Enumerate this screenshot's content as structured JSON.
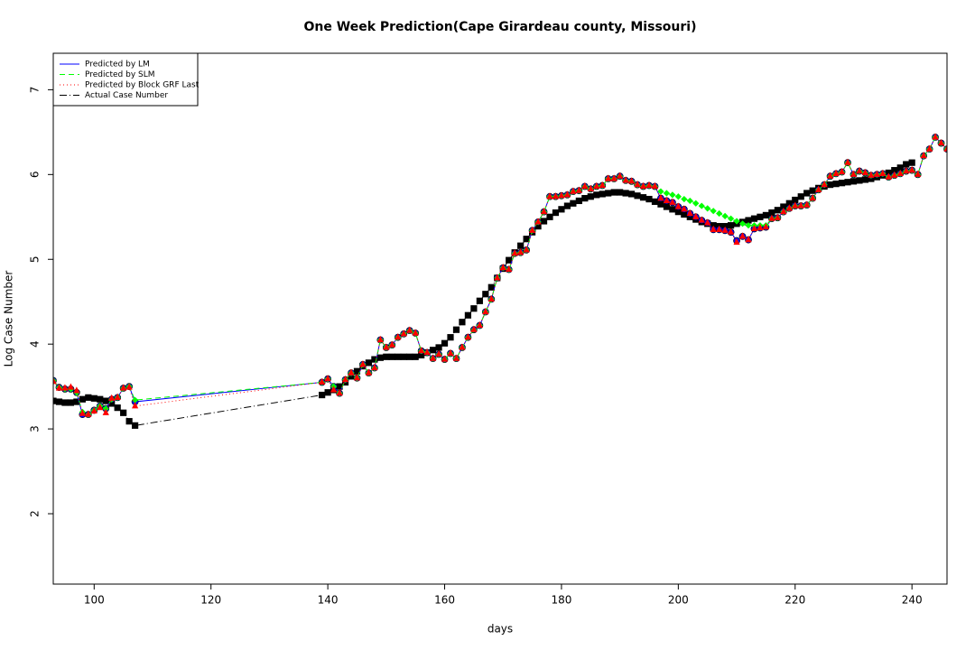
{
  "chart_data": {
    "type": "line",
    "title": "One Week Prediction(Cape Girardeau county, Missouri)",
    "xlabel": "days",
    "ylabel": "Log Case Number",
    "xlim": [
      93,
      246
    ],
    "ylim": [
      1.17,
      7.43
    ],
    "xticks": [
      100,
      120,
      140,
      160,
      180,
      200,
      220,
      240
    ],
    "yticks": [
      2,
      3,
      4,
      5,
      6,
      7
    ],
    "legend": "topleft",
    "x": [
      93,
      94,
      95,
      96,
      97,
      98,
      99,
      100,
      101,
      102,
      103,
      104,
      105,
      106,
      107,
      139,
      140,
      141,
      142,
      143,
      144,
      145,
      146,
      147,
      148,
      149,
      150,
      151,
      152,
      153,
      154,
      155,
      156,
      157,
      158,
      159,
      160,
      161,
      162,
      163,
      164,
      165,
      166,
      167,
      168,
      169,
      170,
      171,
      172,
      173,
      174,
      175,
      176,
      177,
      178,
      179,
      180,
      181,
      182,
      183,
      184,
      185,
      186,
      187,
      188,
      189,
      190,
      191,
      192,
      193,
      194,
      195,
      196,
      197,
      198,
      199,
      200,
      201,
      202,
      203,
      204,
      205,
      206,
      207,
      208,
      209,
      210,
      211,
      212,
      213,
      214,
      215,
      216,
      217,
      218,
      219,
      220,
      221,
      222,
      223,
      224,
      225,
      226,
      227,
      228,
      229,
      230,
      231,
      232,
      233,
      234,
      235,
      236,
      237,
      238,
      239,
      240,
      241,
      242,
      243,
      244,
      245,
      246
    ],
    "series": [
      {
        "name": "Actual Case Number",
        "color": "#000000",
        "linestyle": "dashdot",
        "marker": "square",
        "values": [
          3.33,
          3.32,
          3.31,
          3.31,
          3.32,
          3.35,
          3.37,
          3.36,
          3.35,
          3.33,
          3.3,
          3.25,
          3.19,
          3.09,
          3.04,
          3.4,
          3.43,
          3.46,
          3.5,
          3.55,
          3.62,
          3.68,
          3.74,
          3.78,
          3.82,
          3.84,
          3.85,
          3.85,
          3.85,
          3.85,
          3.85,
          3.85,
          3.87,
          3.9,
          3.93,
          3.96,
          4.01,
          4.08,
          4.17,
          4.26,
          4.34,
          4.42,
          4.51,
          4.59,
          4.67,
          4.78,
          4.89,
          4.99,
          5.08,
          5.16,
          5.24,
          5.32,
          5.39,
          5.45,
          5.5,
          5.55,
          5.59,
          5.63,
          5.66,
          5.69,
          5.72,
          5.74,
          5.76,
          5.77,
          5.78,
          5.79,
          5.79,
          5.78,
          5.77,
          5.75,
          5.73,
          5.71,
          5.68,
          5.65,
          5.62,
          5.59,
          5.56,
          5.53,
          5.5,
          5.47,
          5.44,
          5.42,
          5.4,
          5.39,
          5.39,
          5.4,
          5.42,
          5.44,
          5.46,
          5.48,
          5.5,
          5.52,
          5.55,
          5.58,
          5.62,
          5.66,
          5.7,
          5.74,
          5.78,
          5.81,
          5.84,
          5.86,
          5.88,
          5.89,
          5.9,
          5.91,
          5.92,
          5.93,
          5.94,
          5.95,
          5.97,
          5.99,
          6.02,
          6.05,
          6.08,
          6.12,
          6.14,
          null,
          null,
          null,
          null,
          null,
          null
        ]
      },
      {
        "name": "Predicted by LM",
        "color": "#0000ff",
        "linestyle": "solid",
        "marker": "circle",
        "values": [
          3.57,
          3.49,
          3.47,
          3.47,
          3.43,
          3.17,
          3.17,
          3.22,
          3.27,
          3.24,
          3.35,
          3.37,
          3.48,
          3.5,
          3.32,
          3.55,
          3.59,
          3.5,
          3.42,
          3.58,
          3.66,
          3.6,
          3.76,
          3.66,
          3.72,
          4.05,
          3.96,
          3.99,
          4.08,
          4.12,
          4.16,
          4.13,
          3.92,
          3.9,
          3.83,
          3.88,
          3.82,
          3.89,
          3.83,
          3.96,
          4.08,
          4.17,
          4.22,
          4.38,
          4.53,
          4.78,
          4.9,
          4.88,
          5.07,
          5.08,
          5.11,
          5.34,
          5.44,
          5.56,
          5.74,
          5.74,
          5.75,
          5.76,
          5.8,
          5.81,
          5.86,
          5.83,
          5.86,
          5.87,
          5.95,
          5.95,
          5.98,
          5.93,
          5.92,
          5.88,
          5.86,
          5.87,
          5.86,
          5.72,
          5.69,
          5.67,
          5.62,
          5.59,
          5.54,
          5.5,
          5.46,
          5.43,
          5.35,
          5.35,
          5.34,
          5.32,
          5.22,
          5.27,
          5.23,
          5.36,
          5.37,
          5.38,
          5.48,
          5.49,
          5.56,
          5.6,
          5.63,
          5.63,
          5.64,
          5.72,
          5.82,
          5.88,
          5.98,
          6.01,
          6.03,
          6.14,
          6.0,
          6.04,
          6.02,
          5.99,
          6.0,
          6.01,
          5.97,
          5.99,
          6.01,
          6.04,
          6.05,
          6.0,
          6.22,
          6.3,
          6.44,
          6.37,
          6.3
        ]
      },
      {
        "name": "Predicted by SLM",
        "color": "#00ff00",
        "linestyle": "dashed",
        "marker": "diamond",
        "values": [
          3.57,
          3.49,
          3.47,
          3.47,
          3.43,
          3.2,
          3.17,
          3.22,
          3.27,
          3.24,
          3.35,
          3.37,
          3.48,
          3.5,
          3.34,
          3.55,
          3.59,
          3.5,
          3.42,
          3.58,
          3.66,
          3.6,
          3.76,
          3.66,
          3.72,
          4.05,
          3.96,
          3.99,
          4.08,
          4.12,
          4.16,
          4.13,
          3.92,
          3.9,
          3.83,
          3.88,
          3.82,
          3.89,
          3.83,
          3.96,
          4.08,
          4.17,
          4.22,
          4.38,
          4.53,
          4.78,
          4.9,
          4.88,
          5.07,
          5.08,
          5.11,
          5.34,
          5.44,
          5.56,
          5.74,
          5.74,
          5.75,
          5.76,
          5.8,
          5.81,
          5.86,
          5.83,
          5.86,
          5.87,
          5.95,
          5.95,
          5.98,
          5.93,
          5.92,
          5.88,
          5.86,
          5.87,
          5.86,
          5.8,
          5.78,
          5.76,
          5.74,
          5.71,
          5.69,
          5.66,
          5.63,
          5.6,
          5.57,
          5.54,
          5.51,
          5.48,
          5.45,
          5.42,
          5.4,
          5.4,
          5.4,
          5.4,
          5.48,
          5.49,
          5.56,
          5.6,
          5.63,
          5.63,
          5.64,
          5.72,
          5.82,
          5.88,
          5.98,
          6.01,
          6.03,
          6.14,
          6.0,
          6.04,
          6.02,
          5.99,
          6.0,
          6.01,
          5.97,
          5.99,
          6.01,
          6.04,
          6.05,
          6.0,
          6.22,
          6.3,
          6.44,
          6.37,
          6.3
        ]
      },
      {
        "name": "Predicted by Block GRF Last",
        "color": "#ff0000",
        "linestyle": "dotted",
        "marker": "triangle",
        "values": [
          3.56,
          3.48,
          3.48,
          3.49,
          3.45,
          3.18,
          3.17,
          3.21,
          3.25,
          3.19,
          3.36,
          3.37,
          3.48,
          3.49,
          3.27,
          3.55,
          3.59,
          3.46,
          3.42,
          3.58,
          3.66,
          3.6,
          3.76,
          3.66,
          3.72,
          4.05,
          3.96,
          3.99,
          4.08,
          4.12,
          4.16,
          4.13,
          3.92,
          3.9,
          3.83,
          3.88,
          3.82,
          3.89,
          3.83,
          3.96,
          4.08,
          4.17,
          4.22,
          4.38,
          4.53,
          4.78,
          4.9,
          4.88,
          5.07,
          5.08,
          5.11,
          5.34,
          5.44,
          5.56,
          5.74,
          5.74,
          5.75,
          5.76,
          5.8,
          5.81,
          5.86,
          5.83,
          5.86,
          5.87,
          5.95,
          5.95,
          5.98,
          5.93,
          5.92,
          5.88,
          5.86,
          5.87,
          5.86,
          5.72,
          5.69,
          5.67,
          5.62,
          5.59,
          5.54,
          5.5,
          5.46,
          5.43,
          5.35,
          5.35,
          5.34,
          5.32,
          5.2,
          5.27,
          5.23,
          5.36,
          5.37,
          5.38,
          5.48,
          5.49,
          5.56,
          5.6,
          5.63,
          5.63,
          5.64,
          5.72,
          5.82,
          5.88,
          5.98,
          6.01,
          6.03,
          6.14,
          6.0,
          6.04,
          6.02,
          5.99,
          6.0,
          6.01,
          5.97,
          5.99,
          6.01,
          6.04,
          6.05,
          6.0,
          6.22,
          6.3,
          6.44,
          6.37,
          6.3
        ]
      }
    ]
  }
}
